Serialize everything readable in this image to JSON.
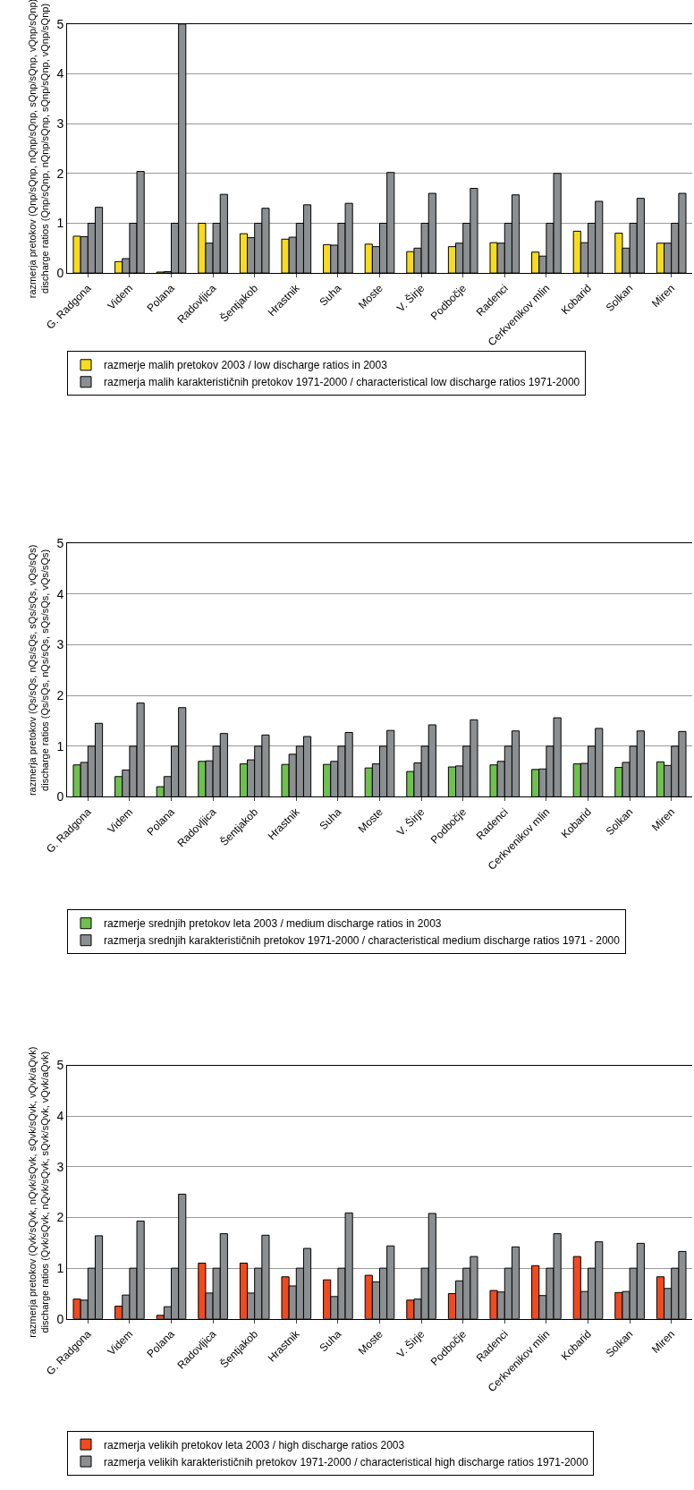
{
  "chart_data": [
    {
      "type": "bar",
      "ylabel": "razmerja pretokov (Qnp/sQnp, nQnp/sQnp, sQnp/sQnp, vQnp/sQnp)\ndischarge ratios (Qnp/sQnp, nQnp/sQnp, sQnp/sQnp, vQnp/sQnp)",
      "categories": [
        "G. Radgona",
        "Videm",
        "Polana",
        "Radovljica",
        "Šentjakob",
        "Hrastnik",
        "Suha",
        "Moste",
        "V. Širje",
        "Podbočje",
        "Radenci",
        "Cerkvenikov mlin",
        "Kobarid",
        "Solkan",
        "Miren"
      ],
      "ylim": [
        0,
        5
      ],
      "yticks": [
        0,
        1,
        2,
        3,
        4,
        5
      ],
      "grid": "y",
      "legend": "bottom",
      "series": [
        {
          "name": "razmerje malih pretokov 2003 / low discharge ratios in 2003",
          "color": "#f7dc1e",
          "values": [
            0.74,
            0.23,
            0.02,
            1.0,
            0.79,
            0.68,
            0.57,
            0.58,
            0.43,
            0.53,
            0.61,
            0.42,
            0.84,
            0.8,
            0.6
          ]
        },
        {
          "name": "razmerja malih karakterističnih pretokov 1971-2000 / characteristical low discharge ratios 1971-2000",
          "color": "#8c8f92",
          "values": [
            0.73,
            0.29,
            0.03,
            0.6,
            0.71,
            0.72,
            0.56,
            0.53,
            0.5,
            0.6,
            0.6,
            0.34,
            0.61,
            0.5,
            0.6
          ]
        },
        {
          "color": "#8c8f92",
          "values": [
            1,
            1,
            1,
            1,
            1,
            1,
            1,
            1,
            1,
            1,
            1,
            1,
            1,
            1,
            1
          ]
        },
        {
          "color": "#8c8f92",
          "values": [
            1.32,
            2.04,
            5.0,
            1.58,
            1.3,
            1.37,
            1.4,
            2.02,
            1.6,
            1.7,
            1.57,
            2.0,
            1.44,
            1.5,
            1.6
          ]
        }
      ]
    },
    {
      "type": "bar",
      "ylabel": "razmerja pretokov (Qs/sQs, nQs/sQs, sQs/sQs, vQs/sQs)\ndischarge ratios (Qs/sQs, nQs/sQs, sQs/sQs, vQs/sQs)",
      "categories": [
        "G. Radgona",
        "Videm",
        "Polana",
        "Radovljica",
        "Šentjakob",
        "Hrastnik",
        "Suha",
        "Moste",
        "V. Širje",
        "Podbočje",
        "Radenci",
        "Cerkvenikov mlin",
        "Kobarid",
        "Solkan",
        "Miren"
      ],
      "ylim": [
        0,
        5
      ],
      "yticks": [
        0,
        1,
        2,
        3,
        4,
        5
      ],
      "grid": "y",
      "legend": "bottom",
      "series": [
        {
          "name": "razmerje srednjih pretokov leta 2003 / medium discharge ratios in 2003",
          "color": "#70c050",
          "values": [
            0.63,
            0.4,
            0.2,
            0.7,
            0.65,
            0.64,
            0.64,
            0.57,
            0.5,
            0.59,
            0.63,
            0.54,
            0.65,
            0.58,
            0.69
          ]
        },
        {
          "name": "razmerja srednjih karakterističnih pretokov 1971-2000 / characteristical medium discharge ratios 1971 - 2000",
          "color": "#8c8f92",
          "values": [
            0.68,
            0.53,
            0.4,
            0.71,
            0.73,
            0.84,
            0.7,
            0.65,
            0.67,
            0.61,
            0.7,
            0.55,
            0.66,
            0.68,
            0.62
          ]
        },
        {
          "color": "#8c8f92",
          "values": [
            1,
            1,
            1,
            1,
            1,
            1,
            1,
            1,
            1,
            1,
            1,
            1,
            1,
            1,
            1
          ]
        },
        {
          "color": "#8c8f92",
          "values": [
            1.45,
            1.85,
            1.76,
            1.25,
            1.22,
            1.19,
            1.27,
            1.31,
            1.42,
            1.52,
            1.3,
            1.56,
            1.35,
            1.3,
            1.29
          ]
        }
      ]
    },
    {
      "type": "bar",
      "ylabel": "razmerja pretokov (Qvk/sQvk, nQvk/sQvk, sQvk/sQvk, vQvk/aQvk)\ndischarge ratios (Qvk/sQvk, nQvk/sQvk, sQvk/sQvk, vQvk/aQvk)",
      "categories": [
        "G. Radgona",
        "Videm",
        "Polana",
        "Radovljica",
        "Šentjakob",
        "Hrastnik",
        "Suha",
        "Moste",
        "V. Širje",
        "Podbočje",
        "Radenci",
        "Cerkvenikov mlin",
        "Kobarid",
        "Solkan",
        "Miren"
      ],
      "ylim": [
        0,
        5
      ],
      "yticks": [
        0,
        1,
        2,
        3,
        4,
        5
      ],
      "grid": "y",
      "legend": "bottom",
      "series": [
        {
          "name": "razmerja velikih pretokov leta 2003 / high discharge ratios 2003",
          "color": "#f04a1e",
          "values": [
            0.39,
            0.25,
            0.07,
            1.1,
            1.1,
            0.83,
            0.77,
            0.86,
            0.37,
            0.5,
            0.56,
            1.05,
            1.23,
            0.52,
            0.83
          ]
        },
        {
          "name": "razmerja velikih karakterističnih pretokov 1971-2000 / characteristical high discharge ratios 1971-2000",
          "color": "#8c8f92",
          "values": [
            0.37,
            0.47,
            0.24,
            0.51,
            0.51,
            0.65,
            0.44,
            0.73,
            0.39,
            0.75,
            0.53,
            0.46,
            0.54,
            0.54,
            0.6
          ]
        },
        {
          "color": "#8c8f92",
          "values": [
            1,
            1,
            1,
            1,
            1,
            1,
            1,
            1,
            1,
            1,
            1,
            1,
            1,
            1,
            1
          ]
        },
        {
          "color": "#8c8f92",
          "values": [
            1.64,
            1.93,
            2.46,
            1.68,
            1.65,
            1.39,
            2.09,
            1.44,
            2.08,
            1.23,
            1.42,
            1.68,
            1.52,
            1.49,
            1.33
          ]
        }
      ]
    }
  ]
}
